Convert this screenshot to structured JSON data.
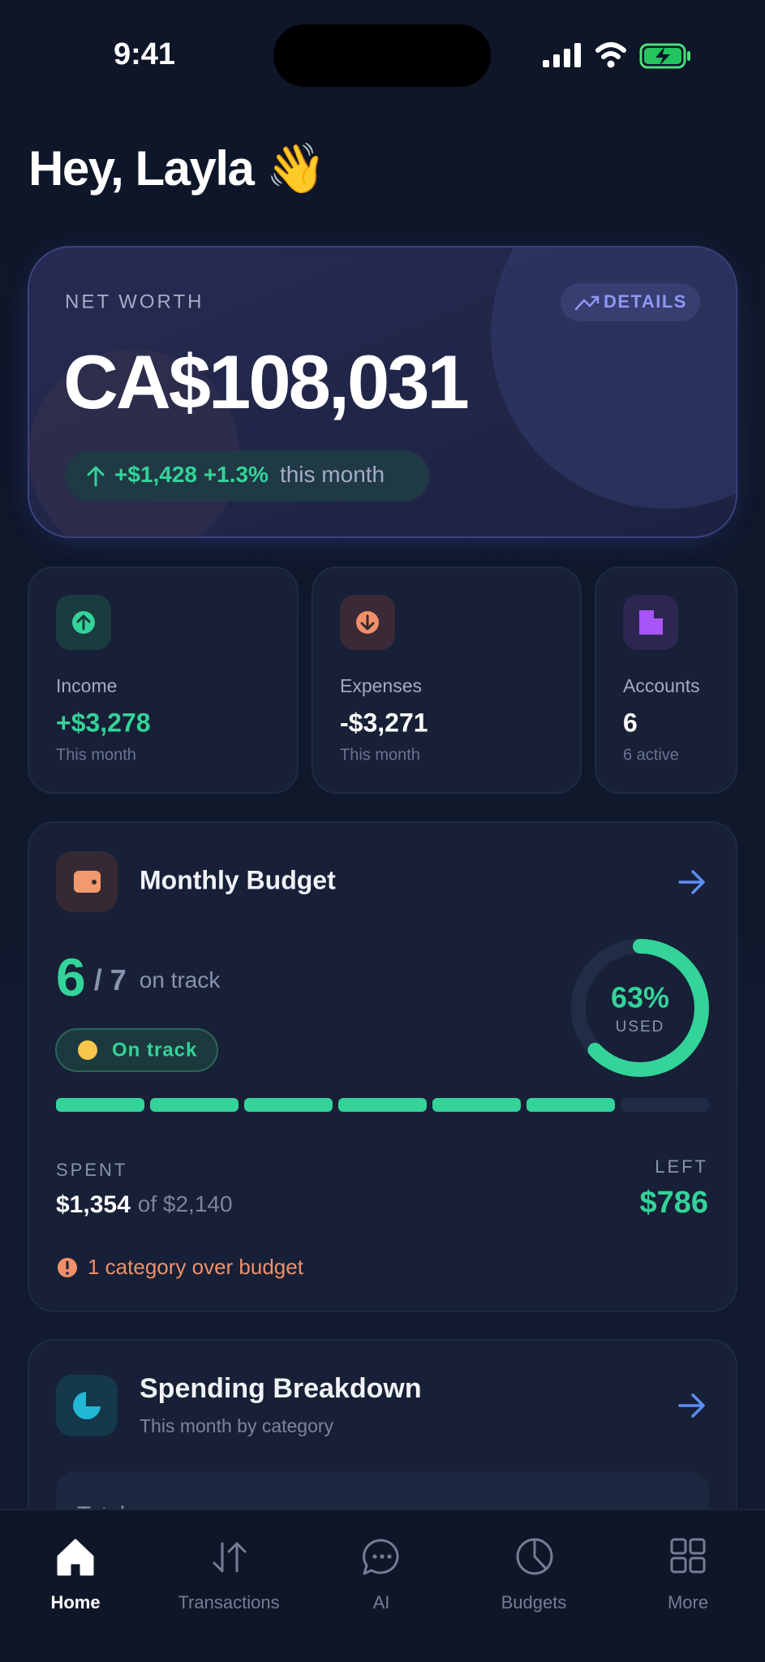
{
  "status_bar": {
    "time": "9:41"
  },
  "greeting": "Hey, Layla 👋",
  "net_worth": {
    "label": "NET WORTH",
    "details_button": "DETAILS",
    "amount": "CA$108,031",
    "change": "+$1,428 +1.3%",
    "change_period": "this month"
  },
  "summary_cards": [
    {
      "label": "Income",
      "value": "+$3,278",
      "sub": "This month"
    },
    {
      "label": "Expenses",
      "value": "-$3,271",
      "sub": "This month"
    },
    {
      "label": "Accounts",
      "value": "6",
      "sub": "6 active"
    }
  ],
  "monthly_budget": {
    "title": "Monthly Budget",
    "on_track_count": "6",
    "total": "/ 7",
    "on_track_label": "on track",
    "badge": "On track",
    "percent_used": "63%",
    "used_label": "USED",
    "spent_label": "SPENT",
    "spent": "$1,354",
    "of_total": "of $2,140",
    "left_label": "LEFT",
    "left": "$786",
    "alert": "1 category over budget"
  },
  "spending_breakdown": {
    "title": "Spending Breakdown",
    "subtitle": "This month by category",
    "total_label": "Total"
  },
  "nav": [
    {
      "label": "Home"
    },
    {
      "label": "Transactions"
    },
    {
      "label": "AI"
    },
    {
      "label": "Budgets"
    },
    {
      "label": "More"
    }
  ]
}
